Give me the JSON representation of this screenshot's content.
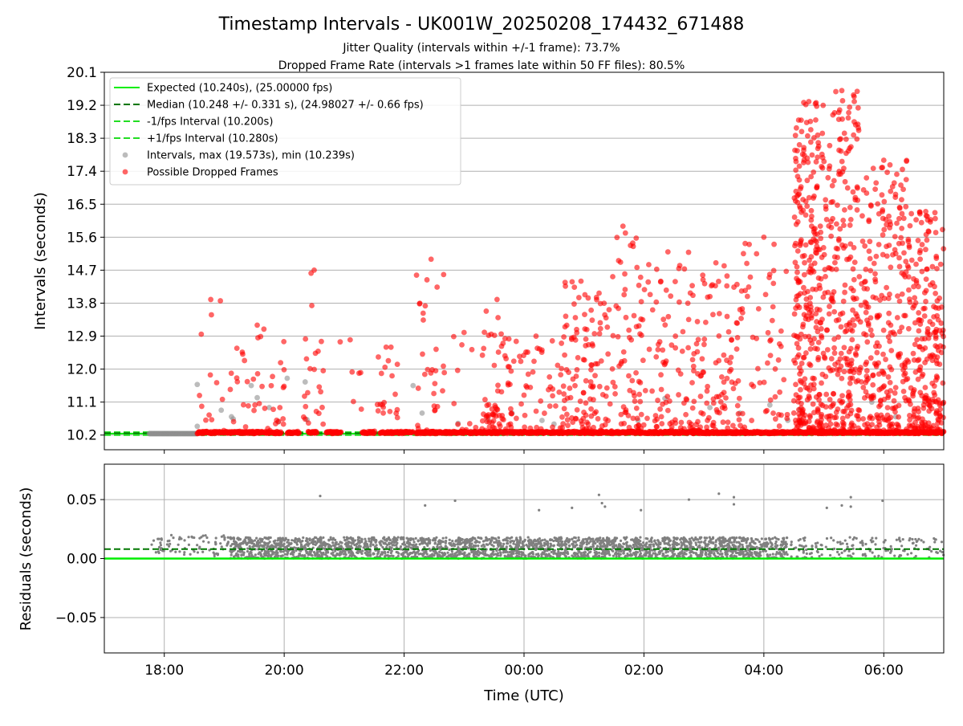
{
  "chart_data": [
    {
      "type": "scatter",
      "title": "Timestamp Intervals - UK001W_20250208_174432_671488",
      "subtitle1": "Jitter Quality (intervals within +/-1 frame): 73.7%",
      "subtitle2": "Dropped Frame Rate (intervals >1 frames late within 50 FF files): 80.5%",
      "ylabel": "Intervals (seconds)",
      "xlabel": "",
      "x_range_hours": [
        17.0,
        31.0
      ],
      "ylim": [
        9.8,
        20.1
      ],
      "yticks": [
        10.2,
        11.1,
        12.0,
        12.9,
        13.8,
        14.7,
        15.6,
        16.5,
        17.4,
        18.3,
        19.2,
        20.1
      ],
      "ytick_labels": [
        "10.2",
        "11.1",
        "12.0",
        "12.9",
        "13.8",
        "14.7",
        "15.6",
        "16.5",
        "17.4",
        "18.3",
        "19.2",
        "20.1"
      ],
      "grid": true,
      "legend_position": "top-left",
      "legend": [
        {
          "label": "Expected (10.240s), (25.00000 fps)",
          "style": "solid",
          "color": "#00ee00"
        },
        {
          "label": "Median (10.248 +/- 0.331 s), (24.98027 +/- 0.66 fps)",
          "style": "dashed",
          "color": "#007700"
        },
        {
          "label": "-1/fps Interval (10.200s)",
          "style": "dashed",
          "color": "#22dd22"
        },
        {
          "label": "+1/fps Interval (10.280s)",
          "style": "dashed",
          "color": "#22dd22"
        },
        {
          "label": "Intervals, max (19.573s), min (10.239s)",
          "style": "marker",
          "color": "#909090"
        },
        {
          "label": "Possible Dropped Frames",
          "style": "marker",
          "color": "#ff0000"
        }
      ],
      "expected": 10.24,
      "median": 10.248,
      "lower_bound": 10.2,
      "upper_bound": 10.28,
      "interval_max": 19.573,
      "interval_min": 10.239,
      "colors": {
        "dropped": "#ff0000",
        "normal": "#909090"
      },
      "dropped_baseline_segments": [
        [
          18.55,
          19.95
        ],
        [
          20.05,
          20.25
        ],
        [
          20.4,
          20.55
        ],
        [
          20.7,
          20.95
        ],
        [
          21.3,
          21.5
        ],
        [
          21.6,
          22.15
        ],
        [
          22.2,
          31.0
        ]
      ],
      "bursts": [
        {
          "start": 18.55,
          "end": 19.0,
          "n": 12,
          "max": 13.9
        },
        {
          "start": 19.1,
          "end": 20.0,
          "n": 40,
          "max": 13.2
        },
        {
          "start": 20.3,
          "end": 20.7,
          "n": 22,
          "max": 14.7
        },
        {
          "start": 20.9,
          "end": 21.3,
          "n": 6,
          "max": 12.8
        },
        {
          "start": 21.5,
          "end": 21.9,
          "n": 20,
          "max": 12.6
        },
        {
          "start": 22.2,
          "end": 22.7,
          "n": 30,
          "max": 15.0
        },
        {
          "start": 22.8,
          "end": 23.2,
          "n": 10,
          "max": 13.0
        },
        {
          "start": 23.3,
          "end": 23.8,
          "n": 70,
          "max": 13.9
        },
        {
          "start": 23.8,
          "end": 24.6,
          "n": 40,
          "max": 12.9
        },
        {
          "start": 24.6,
          "end": 25.3,
          "n": 110,
          "max": 14.4
        },
        {
          "start": 25.3,
          "end": 26.0,
          "n": 90,
          "max": 15.9
        },
        {
          "start": 26.0,
          "end": 26.8,
          "n": 80,
          "max": 15.2
        },
        {
          "start": 26.8,
          "end": 27.6,
          "n": 110,
          "max": 14.9
        },
        {
          "start": 27.6,
          "end": 28.4,
          "n": 60,
          "max": 15.6
        },
        {
          "start": 28.5,
          "end": 29.0,
          "n": 300,
          "max": 19.3
        },
        {
          "start": 29.0,
          "end": 29.6,
          "n": 250,
          "max": 19.6
        },
        {
          "start": 29.6,
          "end": 30.4,
          "n": 260,
          "max": 17.7
        },
        {
          "start": 30.4,
          "end": 31.0,
          "n": 230,
          "max": 16.3
        }
      ],
      "normal_points": [
        [
          18.55,
          11.58
        ],
        [
          18.55,
          10.44
        ],
        [
          18.95,
          10.88
        ],
        [
          19.12,
          10.7
        ],
        [
          19.15,
          10.64
        ],
        [
          19.45,
          11.55
        ],
        [
          19.55,
          11.22
        ],
        [
          19.75,
          10.95
        ],
        [
          19.9,
          10.56
        ],
        [
          20.05,
          11.75
        ],
        [
          20.35,
          11.65
        ],
        [
          20.38,
          10.62
        ],
        [
          22.15,
          11.55
        ],
        [
          22.3,
          10.8
        ],
        [
          22.9,
          10.52
        ],
        [
          23.4,
          10.62
        ],
        [
          23.8,
          10.8
        ],
        [
          24.3,
          10.6
        ],
        [
          24.5,
          10.5
        ],
        [
          25.9,
          10.6
        ],
        [
          26.35,
          11.2
        ],
        [
          27.1,
          10.95
        ],
        [
          27.6,
          10.8
        ],
        [
          28.1,
          11.02
        ],
        [
          28.4,
          10.6
        ],
        [
          28.6,
          10.9
        ],
        [
          29.8,
          11.1
        ],
        [
          30.2,
          10.7
        ]
      ]
    },
    {
      "type": "scatter",
      "title": "",
      "ylabel": "Residuals (seconds)",
      "xlabel": "Time (UTC)",
      "x_range_hours": [
        17.0,
        31.0
      ],
      "xticks_hours": [
        18,
        20,
        22,
        24,
        26,
        28,
        30
      ],
      "xtick_labels": [
        "18:00",
        "20:00",
        "22:00",
        "00:00",
        "02:00",
        "04:00",
        "06:00"
      ],
      "ylim": [
        -0.08,
        0.08
      ],
      "yticks": [
        -0.05,
        0.0,
        0.05
      ],
      "ytick_labels": [
        "−0.05",
        "0.00",
        "0.05"
      ],
      "grid": true,
      "zero_line": 0.0,
      "median_line": 0.008,
      "colors": {
        "points": "#808080",
        "zero": "#00ee00",
        "median": "#007700"
      },
      "dense_band": {
        "start": 19.1,
        "end": 28.4,
        "min": 0.0,
        "max": 0.018,
        "n": 2600
      },
      "sparse_regions": [
        {
          "start": 17.75,
          "end": 19.1,
          "min": 0.002,
          "max": 0.02,
          "n": 80
        },
        {
          "start": 28.4,
          "end": 31.0,
          "min": 0.0,
          "max": 0.018,
          "n": 160
        }
      ],
      "outliers": [
        [
          20.6,
          0.053
        ],
        [
          22.35,
          0.045
        ],
        [
          22.85,
          0.049
        ],
        [
          24.25,
          0.041
        ],
        [
          24.8,
          0.043
        ],
        [
          25.25,
          0.054
        ],
        [
          25.3,
          0.047
        ],
        [
          25.35,
          0.044
        ],
        [
          25.95,
          0.041
        ],
        [
          26.75,
          0.05
        ],
        [
          27.25,
          0.055
        ],
        [
          27.5,
          0.052
        ],
        [
          27.5,
          0.046
        ],
        [
          29.05,
          0.043
        ],
        [
          29.3,
          0.045
        ],
        [
          29.45,
          0.052
        ],
        [
          29.45,
          0.044
        ],
        [
          29.98,
          0.049
        ]
      ]
    }
  ]
}
